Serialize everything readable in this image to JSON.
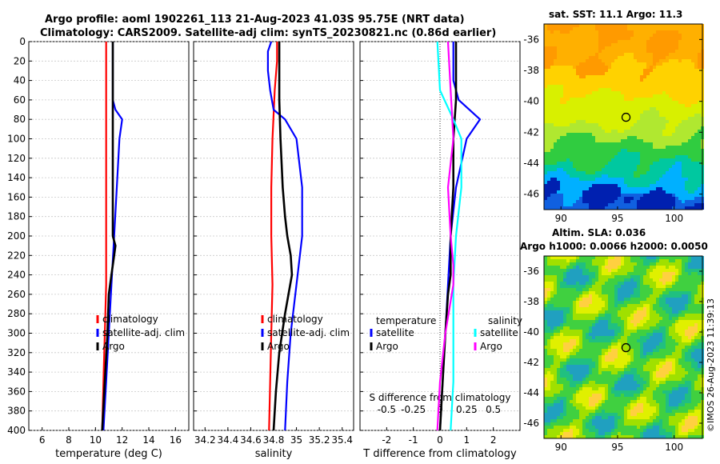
{
  "header": {
    "title_line1": "Argo profile: aoml 1902261_113 21-Aug-2023 41.03S 95.75E (NRT data)",
    "title_line2": "Climatology: CARS2009. Satellite-adj clim: synTS_20230821.nc (0.86d earlier)",
    "sst_title": "sat. SST: 11.1 Argo: 11.3",
    "sla_title1": "Altim. SLA: 0.036",
    "sla_title2": "Argo h1000: 0.0066 h2000: 0.0050",
    "watermark": "©IMOS 26-Aug-2023 11:39:13"
  },
  "colors": {
    "climatology": "#ff0000",
    "satellite": "#0000ff",
    "argo": "#000000",
    "sal_satellite": "#00ffff",
    "sal_argo": "#ff00ff"
  },
  "chart_data": [
    {
      "type": "line",
      "name": "temperature",
      "xlabel": "temperature (deg C)",
      "ylabel": "depth",
      "xlim": [
        5,
        17
      ],
      "ylim": [
        400,
        0
      ],
      "xticks": [
        "6",
        "8",
        "10",
        "12",
        "14",
        "16"
      ],
      "yticks": [
        "0",
        "20",
        "40",
        "60",
        "80",
        "100",
        "120",
        "140",
        "160",
        "180",
        "200",
        "220",
        "240",
        "260",
        "280",
        "300",
        "320",
        "340",
        "360",
        "380",
        "400"
      ],
      "legend": [
        "climatology",
        "satellite-adj. clim",
        "Argo"
      ],
      "series": [
        {
          "name": "climatology",
          "color": "#ff0000",
          "depth": [
            0,
            50,
            100,
            150,
            200,
            250,
            300,
            350,
            400
          ],
          "values": [
            10.8,
            10.8,
            10.8,
            10.8,
            10.8,
            10.8,
            10.7,
            10.6,
            10.5
          ]
        },
        {
          "name": "satellite-adj. clim",
          "color": "#0000ff",
          "depth": [
            0,
            20,
            40,
            60,
            70,
            80,
            100,
            150,
            200,
            250,
            300,
            350,
            400
          ],
          "values": [
            11.3,
            11.3,
            11.3,
            11.3,
            11.5,
            12.0,
            11.8,
            11.6,
            11.4,
            11.2,
            11.0,
            10.8,
            10.6
          ]
        },
        {
          "name": "Argo",
          "color": "#000000",
          "depth": [
            0,
            50,
            100,
            150,
            200,
            210,
            220,
            240,
            260,
            300,
            350,
            400
          ],
          "values": [
            11.3,
            11.3,
            11.3,
            11.3,
            11.3,
            11.5,
            11.4,
            11.2,
            11.0,
            10.9,
            10.7,
            10.5
          ]
        }
      ]
    },
    {
      "type": "line",
      "name": "salinity",
      "xlabel": "salinity",
      "xlim": [
        34.1,
        35.5
      ],
      "ylim": [
        400,
        0
      ],
      "xticks": [
        "34.2",
        "34.4",
        "34.6",
        "34.8",
        "35",
        "35.2",
        "35.4"
      ],
      "legend": [
        "climatology",
        "satellite-adj. clim",
        "Argo"
      ],
      "series": [
        {
          "name": "climatology",
          "color": "#ff0000",
          "depth": [
            0,
            20,
            50,
            100,
            150,
            200,
            250,
            300,
            350,
            400
          ],
          "values": [
            34.83,
            34.83,
            34.81,
            34.79,
            34.78,
            34.78,
            34.79,
            34.78,
            34.77,
            34.76
          ]
        },
        {
          "name": "satellite-adj. clim",
          "color": "#0000ff",
          "depth": [
            0,
            10,
            30,
            50,
            70,
            80,
            100,
            150,
            200,
            250,
            300,
            350,
            400
          ],
          "values": [
            34.78,
            34.75,
            34.75,
            34.77,
            34.8,
            34.9,
            35.0,
            35.05,
            35.05,
            35.0,
            34.95,
            34.92,
            34.9
          ]
        },
        {
          "name": "Argo",
          "color": "#000000",
          "depth": [
            0,
            60,
            100,
            150,
            180,
            200,
            220,
            240,
            280,
            320,
            360,
            400
          ],
          "values": [
            34.85,
            34.85,
            34.86,
            34.88,
            34.9,
            34.92,
            34.95,
            34.96,
            34.9,
            34.85,
            34.82,
            34.8
          ]
        }
      ]
    },
    {
      "type": "line",
      "name": "difference",
      "xlabel": "T difference from climatology",
      "xlabel2": "S difference from climatology",
      "xlim": [
        -3,
        3
      ],
      "ylim": [
        400,
        0
      ],
      "xticks": [
        "-2",
        "-1",
        "0",
        "1",
        "2"
      ],
      "x2ticks": [
        "-0.5",
        "-0.25",
        "0",
        "0.25",
        "0.5"
      ],
      "legend_t": "temperature",
      "legend_s": "salinity",
      "legend_items": [
        "satellite",
        "Argo",
        "satellite",
        "Argo"
      ],
      "series": [
        {
          "name": "T satellite",
          "color": "#0000ff",
          "depth": [
            0,
            40,
            60,
            80,
            100,
            150,
            200,
            250,
            300,
            350,
            400
          ],
          "values": [
            0.5,
            0.5,
            0.7,
            1.5,
            1.0,
            0.6,
            0.4,
            0.3,
            0.2,
            0.1,
            0.0
          ]
        },
        {
          "name": "T Argo",
          "color": "#000000",
          "depth": [
            0,
            60,
            100,
            150,
            200,
            240,
            260,
            300,
            350,
            400
          ],
          "values": [
            0.6,
            0.6,
            0.5,
            0.5,
            0.4,
            0.4,
            0.3,
            0.2,
            0.1,
            0.0
          ]
        },
        {
          "name": "S satellite",
          "color": "#00ffff",
          "depth": [
            0,
            50,
            80,
            100,
            150,
            200,
            250,
            300,
            350,
            400
          ],
          "values": [
            -0.1,
            0.0,
            0.5,
            0.8,
            0.8,
            0.6,
            0.5,
            0.5,
            0.5,
            0.4
          ]
        },
        {
          "name": "S Argo",
          "color": "#ff00ff",
          "depth": [
            0,
            50,
            100,
            150,
            200,
            230,
            250,
            300,
            350,
            400
          ],
          "values": [
            0.3,
            0.4,
            0.5,
            0.3,
            0.4,
            0.5,
            0.5,
            0.2,
            0.0,
            -0.1
          ]
        }
      ]
    },
    {
      "type": "heatmap",
      "name": "sst-map",
      "title": "sat. SST: 11.1 Argo: 11.3",
      "xlim": [
        88.5,
        102.5
      ],
      "ylim": [
        -47,
        -35
      ],
      "xticks": [
        "90",
        "95",
        "100"
      ],
      "yticks": [
        "-36",
        "-38",
        "-40",
        "-42",
        "-44",
        "-46"
      ],
      "marker": {
        "lon": 95.75,
        "lat": -41.03
      }
    },
    {
      "type": "heatmap",
      "name": "sla-map",
      "title": "Altim. SLA: 0.036",
      "xlim": [
        88.5,
        102.5
      ],
      "ylim": [
        -47,
        -35
      ],
      "xticks": [
        "90",
        "95",
        "100"
      ],
      "yticks": [
        "-36",
        "-38",
        "-40",
        "-42",
        "-44",
        "-46"
      ],
      "marker": {
        "lon": 95.75,
        "lat": -41.03
      }
    }
  ]
}
